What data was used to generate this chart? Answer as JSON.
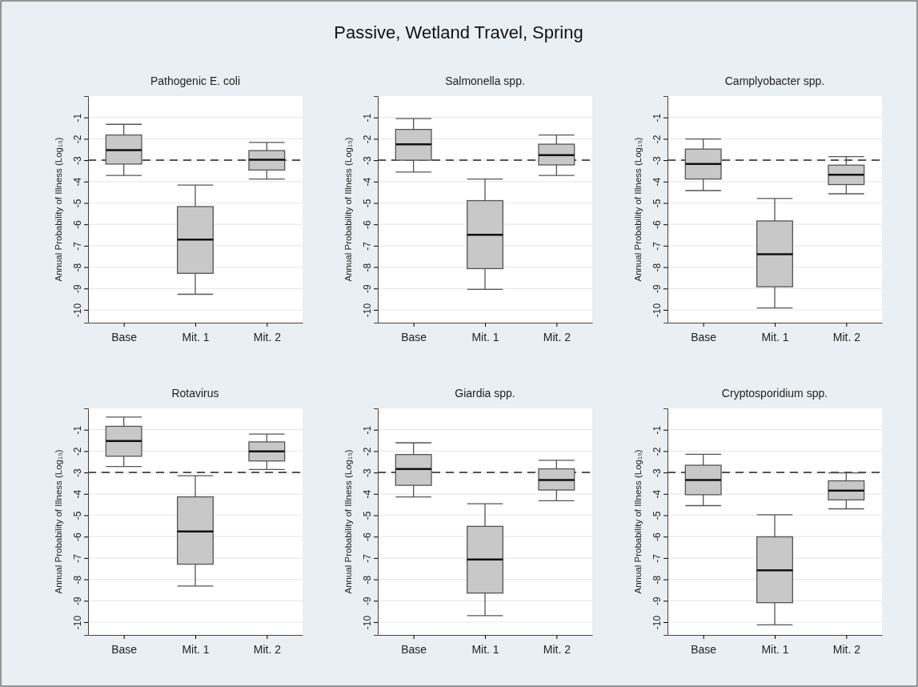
{
  "chart_data": [
    {
      "type": "box",
      "title": "Pathogenic E. coli",
      "annotations": [
        "Passive, Wetland Travel, Spring"
      ],
      "ylabel": "Annual Probability of Illness (Log₁₀)",
      "categories": [
        "Base",
        "Mit. 1",
        "Mit. 2"
      ],
      "ylim": [
        -10.6,
        0
      ],
      "yticks": [
        -1,
        -2,
        -3,
        -4,
        -5,
        -6,
        -7,
        -8,
        -9,
        -10
      ],
      "grid": "y",
      "color": "#c8c8c8",
      "ref_lines": [
        {
          "axis": "y",
          "value": -3,
          "line_style": "dashed",
          "color": "#555555"
        }
      ],
      "boxes": [
        {
          "low": -3.71,
          "q1": -3.18,
          "median": -2.53,
          "q3": -1.82,
          "high": -1.32
        },
        {
          "low": -9.27,
          "q1": -8.29,
          "median": -6.71,
          "q3": -5.17,
          "high": -4.16
        },
        {
          "low": -3.88,
          "q1": -3.46,
          "median": -2.98,
          "q3": -2.55,
          "high": -2.17
        }
      ]
    },
    {
      "type": "box",
      "title": "Salmonella spp.",
      "ylabel": "Annual Probability of Illness (Log₁₀)",
      "categories": [
        "Base",
        "Mit. 1",
        "Mit. 2"
      ],
      "ylim": [
        -10.6,
        0
      ],
      "yticks": [
        -1,
        -2,
        -3,
        -4,
        -5,
        -6,
        -7,
        -8,
        -9,
        -10
      ],
      "grid": "y",
      "color": "#c8c8c8",
      "ref_lines": [
        {
          "axis": "y",
          "value": -3,
          "line_style": "dashed",
          "color": "#555555"
        }
      ],
      "boxes": [
        {
          "low": -3.55,
          "q1": -3.0,
          "median": -2.26,
          "q3": -1.56,
          "high": -1.05
        },
        {
          "low": -9.04,
          "q1": -8.07,
          "median": -6.49,
          "q3": -4.89,
          "high": -3.88
        },
        {
          "low": -3.71,
          "q1": -3.22,
          "median": -2.76,
          "q3": -2.25,
          "high": -1.82
        }
      ]
    },
    {
      "type": "box",
      "title": "Camplyobacter spp.",
      "ylabel": "Annual Probability of Illness (Log₁₀)",
      "categories": [
        "Base",
        "Mit. 1",
        "Mit. 2"
      ],
      "ylim": [
        -10.6,
        0
      ],
      "yticks": [
        -1,
        -2,
        -3,
        -4,
        -5,
        -6,
        -7,
        -8,
        -9,
        -10
      ],
      "grid": "y",
      "color": "#c8c8c8",
      "ref_lines": [
        {
          "axis": "y",
          "value": -3,
          "line_style": "dashed",
          "color": "#555555"
        }
      ],
      "boxes": [
        {
          "low": -4.42,
          "q1": -3.88,
          "median": -3.17,
          "q3": -2.48,
          "high": -2.01
        },
        {
          "low": -9.91,
          "q1": -8.92,
          "median": -7.4,
          "q3": -5.84,
          "high": -4.79
        },
        {
          "low": -4.57,
          "q1": -4.14,
          "median": -3.68,
          "q3": -3.23,
          "high": -2.83
        }
      ]
    },
    {
      "type": "box",
      "title": "Rotavirus",
      "ylabel": "Annual Probability of Illness (Log₁₀)",
      "categories": [
        "Base",
        "Mit. 1",
        "Mit. 2"
      ],
      "ylim": [
        -10.6,
        0
      ],
      "yticks": [
        -1,
        -2,
        -3,
        -4,
        -5,
        -6,
        -7,
        -8,
        -9,
        -10
      ],
      "grid": "y",
      "color": "#c8c8c8",
      "ref_lines": [
        {
          "axis": "y",
          "value": -3,
          "line_style": "dashed",
          "color": "#555555"
        }
      ],
      "boxes": [
        {
          "low": -2.72,
          "q1": -2.24,
          "median": -1.53,
          "q3": -0.84,
          "high": -0.41
        },
        {
          "low": -8.31,
          "q1": -7.29,
          "median": -5.76,
          "q3": -4.14,
          "high": -3.15
        },
        {
          "low": -2.86,
          "q1": -2.46,
          "median": -2.01,
          "q3": -1.57,
          "high": -1.2
        }
      ]
    },
    {
      "type": "box",
      "title": "Giardia spp.",
      "ylabel": "Annual Probability of Illness (Log₁₀)",
      "categories": [
        "Base",
        "Mit. 1",
        "Mit. 2"
      ],
      "ylim": [
        -10.6,
        0
      ],
      "yticks": [
        -1,
        -2,
        -3,
        -4,
        -5,
        -6,
        -7,
        -8,
        -9,
        -10
      ],
      "grid": "y",
      "color": "#c8c8c8",
      "ref_lines": [
        {
          "axis": "y",
          "value": -3,
          "line_style": "dashed",
          "color": "#555555"
        }
      ],
      "boxes": [
        {
          "low": -4.14,
          "q1": -3.6,
          "median": -2.84,
          "q3": -2.16,
          "high": -1.61
        },
        {
          "low": -9.7,
          "q1": -8.64,
          "median": -7.07,
          "q3": -5.52,
          "high": -4.46
        },
        {
          "low": -4.32,
          "q1": -3.82,
          "median": -3.35,
          "q3": -2.83,
          "high": -2.43
        }
      ]
    },
    {
      "type": "box",
      "title": "Cryptosporidium spp.",
      "ylabel": "Annual Probability of Illness (Log₁₀)",
      "categories": [
        "Base",
        "Mit. 1",
        "Mit. 2"
      ],
      "ylim": [
        -10.6,
        0
      ],
      "yticks": [
        -1,
        -2,
        -3,
        -4,
        -5,
        -6,
        -7,
        -8,
        -9,
        -10
      ],
      "grid": "y",
      "color": "#c8c8c8",
      "ref_lines": [
        {
          "axis": "y",
          "value": -3,
          "line_style": "dashed",
          "color": "#555555"
        }
      ],
      "boxes": [
        {
          "low": -4.55,
          "q1": -4.04,
          "median": -3.35,
          "q3": -2.66,
          "high": -2.15
        },
        {
          "low": -10.13,
          "q1": -9.09,
          "median": -7.58,
          "q3": -6.01,
          "high": -4.98
        },
        {
          "low": -4.7,
          "q1": -4.28,
          "median": -3.85,
          "q3": -3.39,
          "high": -3.02
        }
      ]
    }
  ]
}
